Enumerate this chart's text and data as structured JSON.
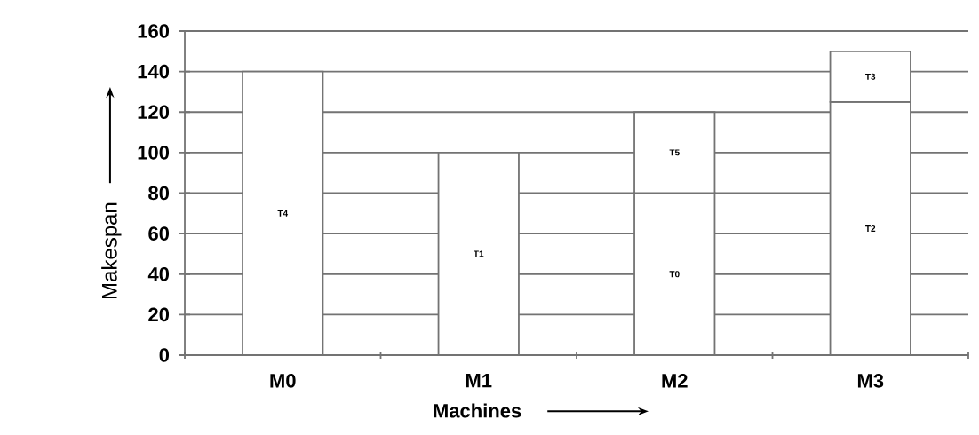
{
  "chart_data": {
    "type": "bar",
    "stacked": true,
    "categories": [
      "M0",
      "M1",
      "M2",
      "M3"
    ],
    "series": [
      {
        "color": "#ffffff",
        "values": [
          140,
          100,
          80,
          125
        ],
        "value_labels": [
          "T4",
          "T1",
          "T0",
          "T2"
        ]
      },
      {
        "color": "#ffffff",
        "values": [
          null,
          null,
          40,
          25
        ],
        "value_labels": [
          null,
          null,
          "T5",
          "T3"
        ]
      }
    ],
    "xlabel": "Machines",
    "ylabel": "Makespan",
    "ylim": [
      0,
      160
    ],
    "yticks": [
      0,
      20,
      40,
      60,
      80,
      100,
      120,
      140,
      160
    ],
    "grid": "y"
  }
}
